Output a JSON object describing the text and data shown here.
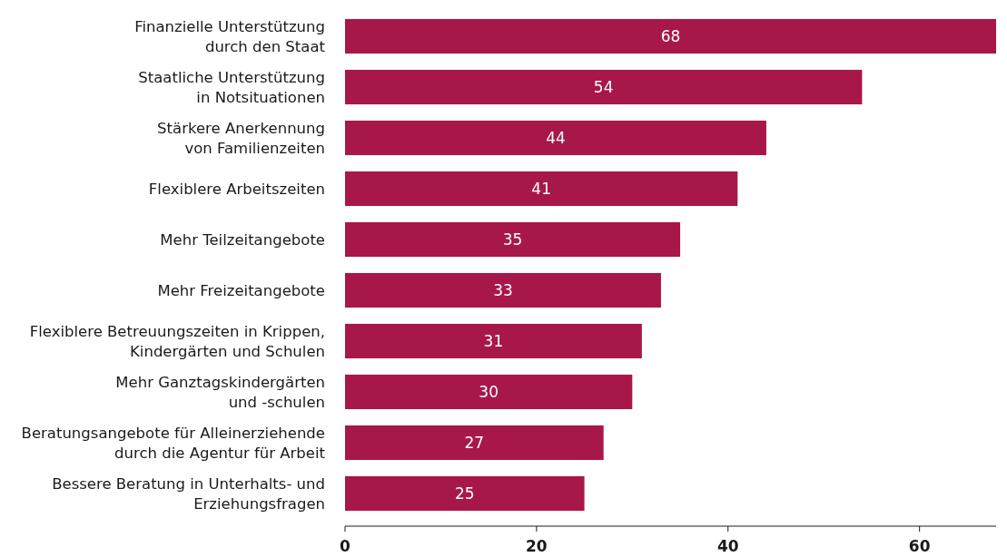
{
  "chart_data": {
    "type": "bar",
    "orientation": "horizontal",
    "categories": [
      "Finanzielle Unterstützung\ndurch den Staat",
      "Staatliche Unterstützung\nin Notsituationen",
      "Stärkere Anerkennung\nvon Familienzeiten",
      "Flexiblere Arbeitszeiten",
      "Mehr Teilzeitangebote",
      "Mehr Freizeitangebote",
      "Flexiblere Betreuungszeiten in Krippen,\nKindergärten und Schulen",
      "Mehr Ganztagskindergärten\nund -schulen",
      "Beratungsangebote für Alleinerziehende\ndurch die Agentur für Arbeit",
      "Bessere Beratung in Unterhalts- und\nErziehungsfragen"
    ],
    "values": [
      68,
      54,
      44,
      41,
      35,
      33,
      31,
      30,
      27,
      25
    ],
    "color": "#a8174a",
    "data_labels": true,
    "xlim": [
      0,
      68
    ],
    "xticks": [
      0,
      20,
      40,
      60
    ]
  }
}
